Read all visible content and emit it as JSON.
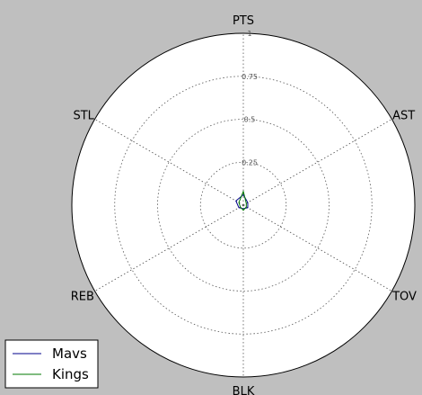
{
  "chart_data": {
    "type": "radar",
    "axes": [
      "PTS",
      "AST",
      "TOV",
      "BLK",
      "REB",
      "STL"
    ],
    "radial_ticks": [
      0.25,
      0.5,
      0.75,
      1
    ],
    "radial_tick_labels": [
      "0.25",
      "0.5",
      "0.75",
      "1"
    ],
    "rlim": [
      0,
      1
    ],
    "grid": true,
    "legend_position": "bottom-left",
    "series": [
      {
        "name": "Mavs",
        "color": "#00008b",
        "values": [
          0.06,
          0.03,
          0.03,
          0.02,
          0.03,
          0.05
        ]
      },
      {
        "name": "Kings",
        "color": "#007a00",
        "values": [
          0.08,
          0.02,
          0.02,
          0.03,
          0.02,
          0.03
        ]
      }
    ]
  }
}
